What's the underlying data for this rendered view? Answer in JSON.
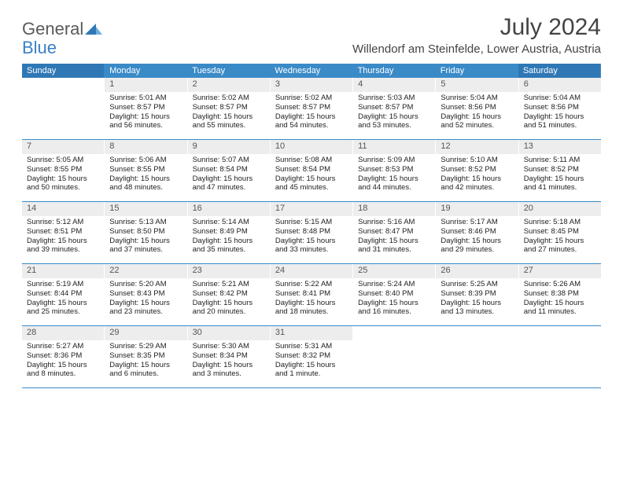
{
  "logo": {
    "general": "General",
    "blue": "Blue"
  },
  "title": "July 2024",
  "location": "Willendorf am Steinfelde, Lower Austria, Austria",
  "colors": {
    "header_bg": "#3a8ac8",
    "header_bg_weekend": "#2f78b5",
    "header_text": "#ffffff",
    "daynum_bg": "#ededed",
    "border": "#3a8ac8",
    "logo_gray": "#5a5a5a",
    "logo_blue": "#3a7fc4"
  },
  "weekdays": [
    "Sunday",
    "Monday",
    "Tuesday",
    "Wednesday",
    "Thursday",
    "Friday",
    "Saturday"
  ],
  "weeks": [
    [
      {
        "n": "",
        "sr": "",
        "ss": "",
        "dl": ""
      },
      {
        "n": "1",
        "sr": "Sunrise: 5:01 AM",
        "ss": "Sunset: 8:57 PM",
        "dl": "Daylight: 15 hours and 56 minutes."
      },
      {
        "n": "2",
        "sr": "Sunrise: 5:02 AM",
        "ss": "Sunset: 8:57 PM",
        "dl": "Daylight: 15 hours and 55 minutes."
      },
      {
        "n": "3",
        "sr": "Sunrise: 5:02 AM",
        "ss": "Sunset: 8:57 PM",
        "dl": "Daylight: 15 hours and 54 minutes."
      },
      {
        "n": "4",
        "sr": "Sunrise: 5:03 AM",
        "ss": "Sunset: 8:57 PM",
        "dl": "Daylight: 15 hours and 53 minutes."
      },
      {
        "n": "5",
        "sr": "Sunrise: 5:04 AM",
        "ss": "Sunset: 8:56 PM",
        "dl": "Daylight: 15 hours and 52 minutes."
      },
      {
        "n": "6",
        "sr": "Sunrise: 5:04 AM",
        "ss": "Sunset: 8:56 PM",
        "dl": "Daylight: 15 hours and 51 minutes."
      }
    ],
    [
      {
        "n": "7",
        "sr": "Sunrise: 5:05 AM",
        "ss": "Sunset: 8:55 PM",
        "dl": "Daylight: 15 hours and 50 minutes."
      },
      {
        "n": "8",
        "sr": "Sunrise: 5:06 AM",
        "ss": "Sunset: 8:55 PM",
        "dl": "Daylight: 15 hours and 48 minutes."
      },
      {
        "n": "9",
        "sr": "Sunrise: 5:07 AM",
        "ss": "Sunset: 8:54 PM",
        "dl": "Daylight: 15 hours and 47 minutes."
      },
      {
        "n": "10",
        "sr": "Sunrise: 5:08 AM",
        "ss": "Sunset: 8:54 PM",
        "dl": "Daylight: 15 hours and 45 minutes."
      },
      {
        "n": "11",
        "sr": "Sunrise: 5:09 AM",
        "ss": "Sunset: 8:53 PM",
        "dl": "Daylight: 15 hours and 44 minutes."
      },
      {
        "n": "12",
        "sr": "Sunrise: 5:10 AM",
        "ss": "Sunset: 8:52 PM",
        "dl": "Daylight: 15 hours and 42 minutes."
      },
      {
        "n": "13",
        "sr": "Sunrise: 5:11 AM",
        "ss": "Sunset: 8:52 PM",
        "dl": "Daylight: 15 hours and 41 minutes."
      }
    ],
    [
      {
        "n": "14",
        "sr": "Sunrise: 5:12 AM",
        "ss": "Sunset: 8:51 PM",
        "dl": "Daylight: 15 hours and 39 minutes."
      },
      {
        "n": "15",
        "sr": "Sunrise: 5:13 AM",
        "ss": "Sunset: 8:50 PM",
        "dl": "Daylight: 15 hours and 37 minutes."
      },
      {
        "n": "16",
        "sr": "Sunrise: 5:14 AM",
        "ss": "Sunset: 8:49 PM",
        "dl": "Daylight: 15 hours and 35 minutes."
      },
      {
        "n": "17",
        "sr": "Sunrise: 5:15 AM",
        "ss": "Sunset: 8:48 PM",
        "dl": "Daylight: 15 hours and 33 minutes."
      },
      {
        "n": "18",
        "sr": "Sunrise: 5:16 AM",
        "ss": "Sunset: 8:47 PM",
        "dl": "Daylight: 15 hours and 31 minutes."
      },
      {
        "n": "19",
        "sr": "Sunrise: 5:17 AM",
        "ss": "Sunset: 8:46 PM",
        "dl": "Daylight: 15 hours and 29 minutes."
      },
      {
        "n": "20",
        "sr": "Sunrise: 5:18 AM",
        "ss": "Sunset: 8:45 PM",
        "dl": "Daylight: 15 hours and 27 minutes."
      }
    ],
    [
      {
        "n": "21",
        "sr": "Sunrise: 5:19 AM",
        "ss": "Sunset: 8:44 PM",
        "dl": "Daylight: 15 hours and 25 minutes."
      },
      {
        "n": "22",
        "sr": "Sunrise: 5:20 AM",
        "ss": "Sunset: 8:43 PM",
        "dl": "Daylight: 15 hours and 23 minutes."
      },
      {
        "n": "23",
        "sr": "Sunrise: 5:21 AM",
        "ss": "Sunset: 8:42 PM",
        "dl": "Daylight: 15 hours and 20 minutes."
      },
      {
        "n": "24",
        "sr": "Sunrise: 5:22 AM",
        "ss": "Sunset: 8:41 PM",
        "dl": "Daylight: 15 hours and 18 minutes."
      },
      {
        "n": "25",
        "sr": "Sunrise: 5:24 AM",
        "ss": "Sunset: 8:40 PM",
        "dl": "Daylight: 15 hours and 16 minutes."
      },
      {
        "n": "26",
        "sr": "Sunrise: 5:25 AM",
        "ss": "Sunset: 8:39 PM",
        "dl": "Daylight: 15 hours and 13 minutes."
      },
      {
        "n": "27",
        "sr": "Sunrise: 5:26 AM",
        "ss": "Sunset: 8:38 PM",
        "dl": "Daylight: 15 hours and 11 minutes."
      }
    ],
    [
      {
        "n": "28",
        "sr": "Sunrise: 5:27 AM",
        "ss": "Sunset: 8:36 PM",
        "dl": "Daylight: 15 hours and 8 minutes."
      },
      {
        "n": "29",
        "sr": "Sunrise: 5:29 AM",
        "ss": "Sunset: 8:35 PM",
        "dl": "Daylight: 15 hours and 6 minutes."
      },
      {
        "n": "30",
        "sr": "Sunrise: 5:30 AM",
        "ss": "Sunset: 8:34 PM",
        "dl": "Daylight: 15 hours and 3 minutes."
      },
      {
        "n": "31",
        "sr": "Sunrise: 5:31 AM",
        "ss": "Sunset: 8:32 PM",
        "dl": "Daylight: 15 hours and 1 minute."
      },
      {
        "n": "",
        "sr": "",
        "ss": "",
        "dl": ""
      },
      {
        "n": "",
        "sr": "",
        "ss": "",
        "dl": ""
      },
      {
        "n": "",
        "sr": "",
        "ss": "",
        "dl": ""
      }
    ]
  ]
}
